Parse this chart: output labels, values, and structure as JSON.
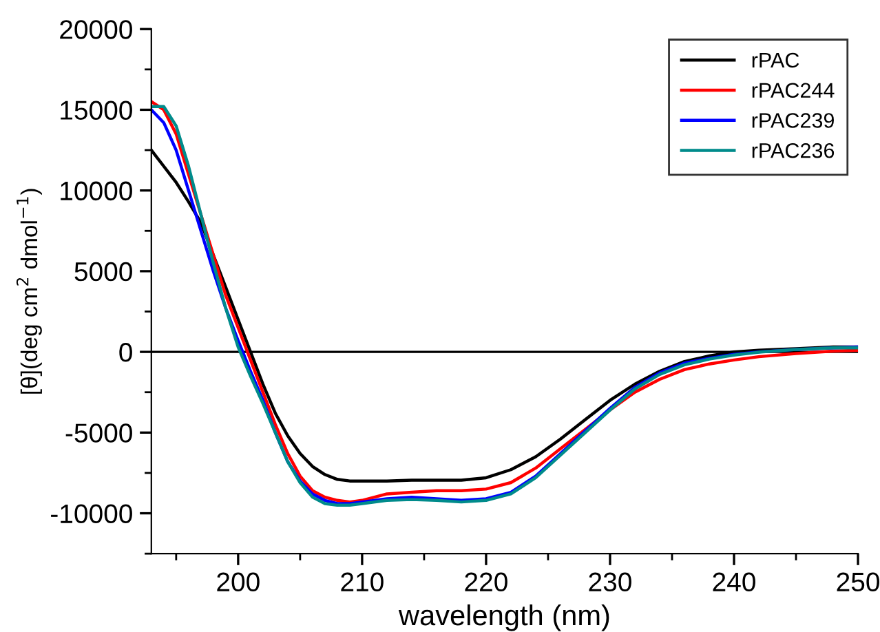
{
  "chart_data": {
    "type": "line",
    "xlabel": "wavelength (nm)",
    "ylabel": "[θ](deg cm$^{2}$ dmol$^{−1}$)",
    "xlim": [
      193,
      250
    ],
    "ylim": [
      -12500,
      20000
    ],
    "xticks": [
      200,
      210,
      220,
      230,
      240,
      250
    ],
    "yticks": [
      -10000,
      -5000,
      0,
      5000,
      10000,
      15000,
      20000
    ],
    "grid": false,
    "legend": "top right",
    "marker": "none",
    "line_style": "solid",
    "ref_lines": [
      {
        "axis": "y",
        "value": 0,
        "color": "#000000"
      }
    ],
    "x": [
      193,
      194,
      195,
      196,
      197,
      198,
      199,
      200,
      201,
      202,
      203,
      204,
      205,
      206,
      207,
      208,
      209,
      210,
      212,
      214,
      216,
      218,
      220,
      222,
      224,
      226,
      228,
      230,
      232,
      234,
      236,
      238,
      240,
      242,
      245,
      248,
      250
    ],
    "series": [
      {
        "name": "rPAC",
        "color": "#000000",
        "values": [
          12500,
          11500,
          10500,
          9300,
          8000,
          6000,
          4000,
          2000,
          0,
          -2000,
          -3800,
          -5200,
          -6300,
          -7100,
          -7600,
          -7900,
          -8000,
          -8000,
          -8000,
          -7950,
          -7950,
          -7950,
          -7800,
          -7300,
          -6500,
          -5400,
          -4200,
          -3000,
          -2000,
          -1200,
          -600,
          -250,
          0,
          100,
          200,
          300,
          300
        ]
      },
      {
        "name": "rPAC244",
        "color": "#ff0000",
        "values": [
          15500,
          15000,
          13500,
          11000,
          8500,
          6000,
          3500,
          1500,
          -500,
          -2500,
          -4500,
          -6300,
          -7700,
          -8600,
          -9000,
          -9200,
          -9300,
          -9200,
          -8800,
          -8700,
          -8600,
          -8600,
          -8500,
          -8100,
          -7200,
          -6000,
          -4800,
          -3600,
          -2500,
          -1700,
          -1100,
          -750,
          -500,
          -300,
          -100,
          50,
          100
        ]
      },
      {
        "name": "rPAC239",
        "color": "#0000ff",
        "values": [
          15000,
          14200,
          12500,
          10000,
          7500,
          5000,
          2700,
          700,
          -1200,
          -3000,
          -5000,
          -6800,
          -8000,
          -8800,
          -9200,
          -9400,
          -9400,
          -9300,
          -9100,
          -9000,
          -9100,
          -9200,
          -9100,
          -8700,
          -7700,
          -6300,
          -4900,
          -3500,
          -2200,
          -1300,
          -700,
          -400,
          -150,
          0,
          150,
          250,
          300
        ]
      },
      {
        "name": "rPAC236",
        "color": "#008b8b",
        "values": [
          15200,
          15200,
          14000,
          11500,
          8500,
          5500,
          2700,
          300,
          -1500,
          -3200,
          -5000,
          -6800,
          -8100,
          -9000,
          -9400,
          -9500,
          -9500,
          -9400,
          -9200,
          -9150,
          -9200,
          -9300,
          -9200,
          -8800,
          -7800,
          -6400,
          -5000,
          -3600,
          -2300,
          -1400,
          -800,
          -450,
          -200,
          -20,
          150,
          250,
          250
        ]
      }
    ]
  }
}
